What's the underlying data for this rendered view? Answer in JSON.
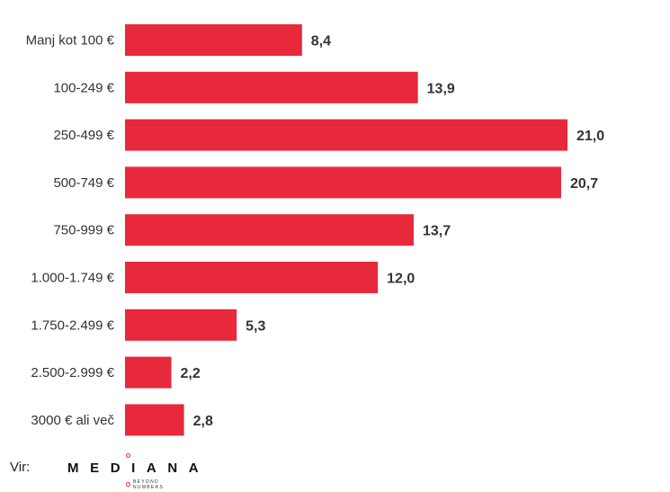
{
  "chart_data": {
    "type": "bar",
    "orientation": "horizontal",
    "categories": [
      "Manj kot 100 €",
      "100-249 €",
      "250-499 €",
      "500-749 €",
      "750-999 €",
      "1.000-1.749 €",
      "1.750-2.499 €",
      "2.500-2.999 €",
      "3000 € ali več"
    ],
    "values": [
      8.4,
      13.9,
      21.0,
      20.7,
      13.7,
      12.0,
      5.3,
      2.2,
      2.8
    ],
    "value_labels": [
      "8,4",
      "13,9",
      "21,0",
      "20,7",
      "13,7",
      "12,0",
      "5,3",
      "2,2",
      "2,8"
    ],
    "bar_color": "#e8283b",
    "xlim": [
      0,
      21
    ],
    "grid": false,
    "legend": "none"
  },
  "source": {
    "label": "Vir:",
    "logo_text": "MEDIANA",
    "logo_tagline": "BEYOND NUMBERS",
    "logo_accent": "#e8283b"
  }
}
